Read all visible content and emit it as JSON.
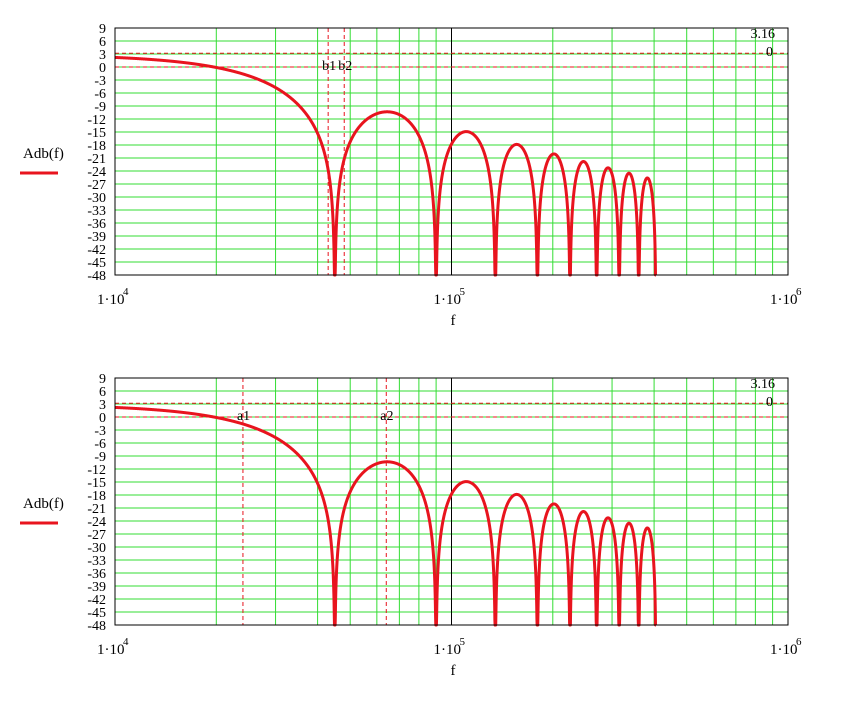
{
  "chart_data": [
    {
      "type": "line",
      "xscale": "log",
      "xlim": [
        10000,
        1000000
      ],
      "ylim": [
        -48,
        9
      ],
      "ylabel": "Adb(f)",
      "xlabel": "f",
      "yticks": [
        "9",
        "6",
        "3",
        "0",
        "-3",
        "-6",
        "-9",
        "-12",
        "-15",
        "-18",
        "-21",
        "-24",
        "-27",
        "-30",
        "-33",
        "-36",
        "-39",
        "-42",
        "-45",
        "-48"
      ],
      "xticks": [
        {
          "base": "1·10",
          "exp": "4"
        },
        {
          "base": "1·10",
          "exp": "5"
        },
        {
          "base": "1·10",
          "exp": "6"
        }
      ],
      "hlines": [
        {
          "y": 3.16,
          "label": "3.16"
        },
        {
          "y": 0,
          "label": "0"
        }
      ],
      "vlines": [
        {
          "x": 43000,
          "label": "b1"
        },
        {
          "x": 48000,
          "label": "b2"
        }
      ],
      "series": [
        {
          "name": "Adb(f)",
          "color": "#e8141e",
          "form": "sinc",
          "first_null": 45000,
          "db_floor": -48,
          "end": 405000
        }
      ]
    },
    {
      "type": "line",
      "xscale": "log",
      "xlim": [
        10000,
        1000000
      ],
      "ylim": [
        -48,
        9
      ],
      "ylabel": "Adb(f)",
      "xlabel": "f",
      "yticks": [
        "9",
        "6",
        "3",
        "0",
        "-3",
        "-6",
        "-9",
        "-12",
        "-15",
        "-18",
        "-21",
        "-24",
        "-27",
        "-30",
        "-33",
        "-36",
        "-39",
        "-42",
        "-45",
        "-48"
      ],
      "xticks": [
        {
          "base": "1·10",
          "exp": "4"
        },
        {
          "base": "1·10",
          "exp": "5"
        },
        {
          "base": "1·10",
          "exp": "6"
        }
      ],
      "hlines": [
        {
          "y": 3.16,
          "label": "3.16"
        },
        {
          "y": 0,
          "label": "0"
        }
      ],
      "vlines": [
        {
          "x": 24000,
          "label": "a1"
        },
        {
          "x": 64000,
          "label": "a2"
        }
      ],
      "series": [
        {
          "name": "Adb(f)",
          "color": "#e8141e",
          "form": "sinc",
          "first_null": 45000,
          "db_floor": -48,
          "end": 405000
        }
      ]
    }
  ],
  "colors": {
    "grid": "#33dd33",
    "curve": "#e8141e",
    "marker_line": "#e8141e",
    "axis": "#000000",
    "background": "#ffffff"
  }
}
